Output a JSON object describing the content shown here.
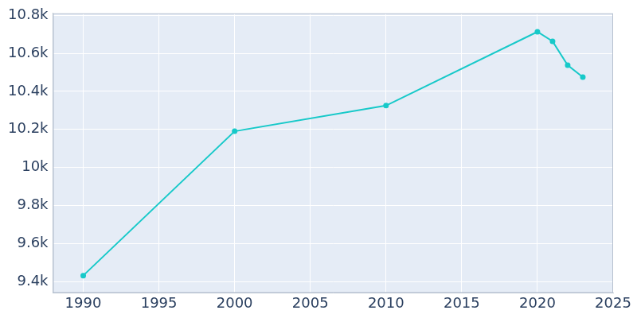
{
  "chart_data": {
    "type": "line",
    "x": [
      1990,
      2000,
      2010,
      2020,
      2021,
      2022,
      2023
    ],
    "values": [
      9431,
      10190,
      10325,
      10713,
      10663,
      10537,
      10475
    ],
    "color": "#17c9c9",
    "marker": "circle",
    "xlim": [
      1988,
      2025
    ],
    "xticks": [
      1990,
      1995,
      2000,
      2005,
      2010,
      2015,
      2020,
      2025
    ],
    "ylim": [
      9340,
      10810
    ],
    "yticks": [
      {
        "value": 9400,
        "label": "9.4k"
      },
      {
        "value": 9600,
        "label": "9.6k"
      },
      {
        "value": 9800,
        "label": "9.8k"
      },
      {
        "value": 10000,
        "label": "10k"
      },
      {
        "value": 10200,
        "label": "10.2k"
      },
      {
        "value": 10400,
        "label": "10.4k"
      },
      {
        "value": 10600,
        "label": "10.6k"
      },
      {
        "value": 10800,
        "label": "10.8k"
      }
    ],
    "grid": true
  }
}
